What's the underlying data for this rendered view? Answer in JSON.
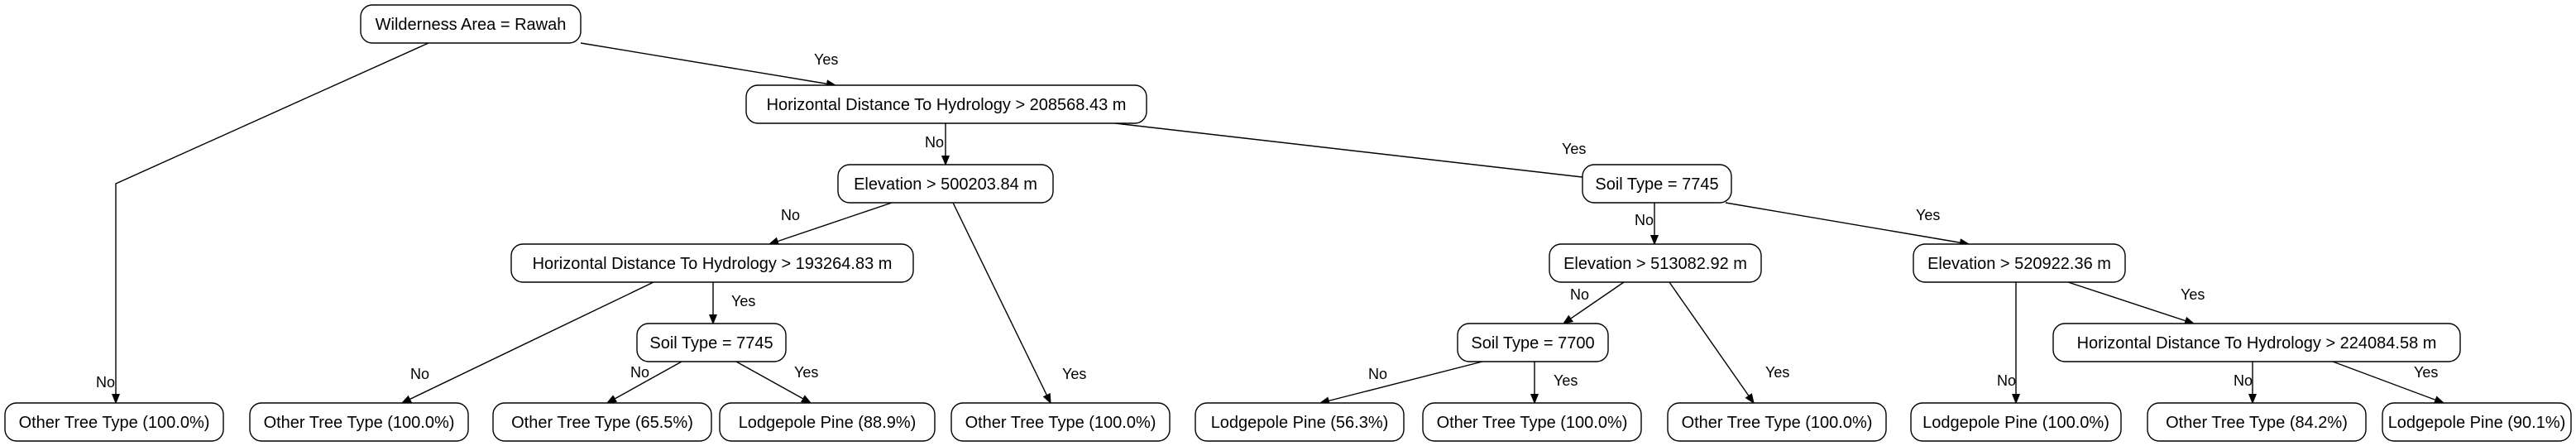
{
  "nodes": [
    {
      "id": "n0",
      "label": "Wilderness Area = Rawah"
    },
    {
      "id": "n1",
      "label": "Horizontal Distance To Hydrology > 208568.43 m"
    },
    {
      "id": "n2",
      "label": "Elevation > 500203.84 m"
    },
    {
      "id": "n3",
      "label": "Soil Type = 7745"
    },
    {
      "id": "n4",
      "label": "Horizontal Distance To Hydrology > 193264.83 m"
    },
    {
      "id": "n5",
      "label": "Elevation > 513082.92 m"
    },
    {
      "id": "n6",
      "label": "Elevation > 520922.36 m"
    },
    {
      "id": "n7",
      "label": "Soil Type = 7745"
    },
    {
      "id": "n8",
      "label": "Soil Type = 7700"
    },
    {
      "id": "n9",
      "label": "Horizontal Distance To Hydrology > 224084.58 m"
    },
    {
      "id": "l0",
      "label": "Other Tree Type (100.0%)"
    },
    {
      "id": "l1",
      "label": "Other Tree Type (100.0%)"
    },
    {
      "id": "l2",
      "label": "Other Tree Type (65.5%)"
    },
    {
      "id": "l3",
      "label": "Lodgepole Pine (88.9%)"
    },
    {
      "id": "l4",
      "label": "Other Tree Type (100.0%)"
    },
    {
      "id": "l5",
      "label": "Lodgepole Pine (56.3%)"
    },
    {
      "id": "l6",
      "label": "Other Tree Type (100.0%)"
    },
    {
      "id": "l7",
      "label": "Other Tree Type (100.0%)"
    },
    {
      "id": "l8",
      "label": "Lodgepole Pine (100.0%)"
    },
    {
      "id": "l9",
      "label": "Other Tree Type (84.2%)"
    },
    {
      "id": "l10",
      "label": "Lodgepole Pine (90.1%)"
    }
  ],
  "edges": [
    {
      "from": "n0",
      "to": "l0",
      "label": "No"
    },
    {
      "from": "n0",
      "to": "n1",
      "label": "Yes"
    },
    {
      "from": "n1",
      "to": "n2",
      "label": "No"
    },
    {
      "from": "n1",
      "to": "n3",
      "label": "Yes"
    },
    {
      "from": "n2",
      "to": "n4",
      "label": "No"
    },
    {
      "from": "n2",
      "to": "l4",
      "label": "Yes"
    },
    {
      "from": "n4",
      "to": "l1",
      "label": "No"
    },
    {
      "from": "n4",
      "to": "n7",
      "label": "Yes"
    },
    {
      "from": "n7",
      "to": "l2",
      "label": "No"
    },
    {
      "from": "n7",
      "to": "l3",
      "label": "Yes"
    },
    {
      "from": "n3",
      "to": "n5",
      "label": "No"
    },
    {
      "from": "n3",
      "to": "n6",
      "label": "Yes"
    },
    {
      "from": "n5",
      "to": "n8",
      "label": "No"
    },
    {
      "from": "n5",
      "to": "l7",
      "label": "Yes"
    },
    {
      "from": "n8",
      "to": "l5",
      "label": "No"
    },
    {
      "from": "n8",
      "to": "l6",
      "label": "Yes"
    },
    {
      "from": "n6",
      "to": "l8",
      "label": "No"
    },
    {
      "from": "n6",
      "to": "n9",
      "label": "Yes"
    },
    {
      "from": "n9",
      "to": "l9",
      "label": "No"
    },
    {
      "from": "n9",
      "to": "l10",
      "label": "Yes"
    }
  ]
}
